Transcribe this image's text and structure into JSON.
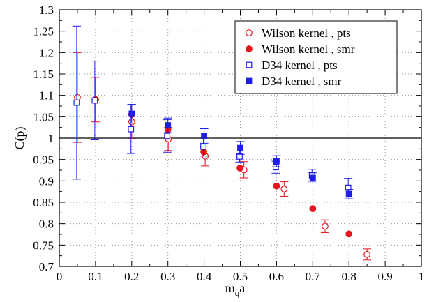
{
  "chart_data": {
    "type": "scatter",
    "xlabel_main": "m",
    "xlabel_sub": "q",
    "xlabel_suffix": "a",
    "ylabel": "C(p)",
    "xlim": [
      0,
      1
    ],
    "ylim": [
      0.7,
      1.3
    ],
    "x_ticks": [
      0,
      0.1,
      0.2,
      0.3,
      0.4,
      0.5,
      0.6,
      0.7,
      0.8,
      0.9,
      1
    ],
    "x_tick_labels": [
      "0",
      "0.1",
      "0.2",
      "0.3",
      "0.4",
      "0.5",
      "0.6",
      "0.7",
      "0.8",
      "0.9",
      "1"
    ],
    "y_ticks": [
      0.7,
      0.75,
      0.8,
      0.85,
      0.9,
      0.95,
      1,
      1.05,
      1.1,
      1.15,
      1.2,
      1.25,
      1.3
    ],
    "y_tick_labels": [
      "0.7",
      "0.75",
      "0.8",
      "0.85",
      "0.9",
      "0.95",
      "1",
      "1.05",
      "1.1",
      "1.15",
      "1.2",
      "1.25",
      "1.3"
    ],
    "grid": true,
    "reference_line_y": 1.0,
    "legend_position": "top-right",
    "series": [
      {
        "name": "Wilson kernel , pts",
        "marker": "circle-open",
        "color": "#e8141e",
        "points": [
          {
            "x": 0.05,
            "y": 1.095,
            "err": 0.105
          },
          {
            "x": 0.1,
            "y": 1.09,
            "err": 0.052
          },
          {
            "x": 0.2,
            "y": 1.038,
            "err": 0.04
          },
          {
            "x": 0.301,
            "y": 0.998,
            "err": 0.027
          },
          {
            "x": 0.403,
            "y": 0.958,
            "err": 0.023
          },
          {
            "x": 0.51,
            "y": 0.926,
            "err": 0.019
          },
          {
            "x": 0.621,
            "y": 0.881,
            "err": 0.017
          },
          {
            "x": 0.734,
            "y": 0.794,
            "err": 0.015
          },
          {
            "x": 0.85,
            "y": 0.728,
            "err": 0.013
          }
        ]
      },
      {
        "name": "Wilson kernel , smr",
        "marker": "circle-filled",
        "color": "#e8141e",
        "points": [
          {
            "x": 0.1,
            "y": 1.09,
            "err": 0.0
          },
          {
            "x": 0.2,
            "y": 1.055,
            "err": 0.0
          },
          {
            "x": 0.3,
            "y": 1.02,
            "err": 0.0
          },
          {
            "x": 0.399,
            "y": 0.968,
            "err": 0.0
          },
          {
            "x": 0.499,
            "y": 0.93,
            "err": 0.0
          },
          {
            "x": 0.6,
            "y": 0.888,
            "err": 0.0
          },
          {
            "x": 0.7,
            "y": 0.835,
            "err": 0.0
          },
          {
            "x": 0.8,
            "y": 0.776,
            "err": 0.0
          }
        ]
      },
      {
        "name": "D34 kernel , pts",
        "marker": "square-open",
        "color": "#1e1ee8",
        "points": [
          {
            "x": 0.048,
            "y": 1.083,
            "err": 0.179
          },
          {
            "x": 0.098,
            "y": 1.088,
            "err": 0.092
          },
          {
            "x": 0.198,
            "y": 1.021,
            "err": 0.057
          },
          {
            "x": 0.298,
            "y": 1.005,
            "err": 0.038
          },
          {
            "x": 0.398,
            "y": 0.98,
            "err": 0.022
          },
          {
            "x": 0.498,
            "y": 0.957,
            "err": 0.013
          },
          {
            "x": 0.598,
            "y": 0.932,
            "err": 0.014
          },
          {
            "x": 0.698,
            "y": 0.913,
            "err": 0.014
          },
          {
            "x": 0.798,
            "y": 0.884,
            "err": 0.022
          }
        ]
      },
      {
        "name": "D34 kernel , smr",
        "marker": "square-filled",
        "color": "#1e1ee8",
        "points": [
          {
            "x": 0.2,
            "y": 1.057,
            "err": 0.022
          },
          {
            "x": 0.3,
            "y": 1.03,
            "err": 0.017
          },
          {
            "x": 0.4,
            "y": 1.005,
            "err": 0.017
          },
          {
            "x": 0.5,
            "y": 0.977,
            "err": 0.015
          },
          {
            "x": 0.6,
            "y": 0.946,
            "err": 0.013
          },
          {
            "x": 0.7,
            "y": 0.907,
            "err": 0.012
          },
          {
            "x": 0.8,
            "y": 0.869,
            "err": 0.011
          }
        ]
      }
    ]
  }
}
